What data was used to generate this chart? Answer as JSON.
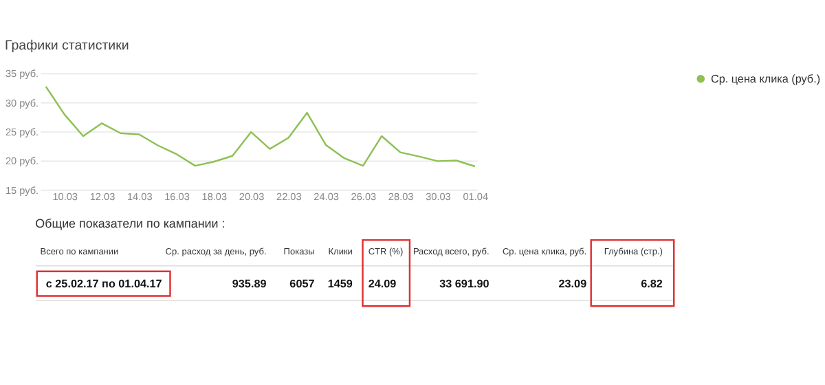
{
  "chart_data": [
    {
      "type": "line",
      "title": "Графики статистики",
      "categories": [
        null,
        "10.03",
        null,
        "12.03",
        null,
        "14.03",
        null,
        "16.03",
        null,
        "18.03",
        null,
        "20.03",
        null,
        "22.03",
        null,
        "24.03",
        null,
        "26.03",
        null,
        "28.03",
        null,
        "30.03",
        null,
        "01.04"
      ],
      "series": [
        {
          "name": "Ср. цена клика (руб.)",
          "color": "#8dc153",
          "values": [
            32.7,
            27.9,
            24.2,
            26.4,
            24.7,
            24.5,
            22.6,
            21.1,
            19.1,
            19.8,
            20.8,
            24.9,
            22.0,
            23.9,
            28.2,
            22.7,
            20.4,
            19.1,
            24.2,
            21.4,
            20.7,
            19.9,
            20.0,
            19.0
          ]
        }
      ],
      "ylim": [
        15,
        35
      ],
      "yticks": [
        {
          "value": 15,
          "label": "15 руб."
        },
        {
          "value": 20,
          "label": "20 руб."
        },
        {
          "value": 25,
          "label": "25 руб."
        },
        {
          "value": 30,
          "label": "30 руб."
        },
        {
          "value": 35,
          "label": "35 руб."
        }
      ],
      "grid": "y",
      "legend": "top right",
      "marker": "none",
      "line_style": "solid"
    },
    {
      "type": "other",
      "title": "Общие показатели по кампании :",
      "annotations": [
        "Всего по кампании",
        "Ср. расход за день, руб.",
        "Показы",
        "Клики",
        "CTR (%)",
        "Расход всего, руб.",
        "Ср. цена клика, руб.",
        "Глубина (стр.)",
        "с 25.02.17 по 01.04.17",
        "935.89",
        "6057",
        "1459",
        "24.09",
        "33 691.90",
        "23.09",
        "6.82"
      ]
    }
  ]
}
